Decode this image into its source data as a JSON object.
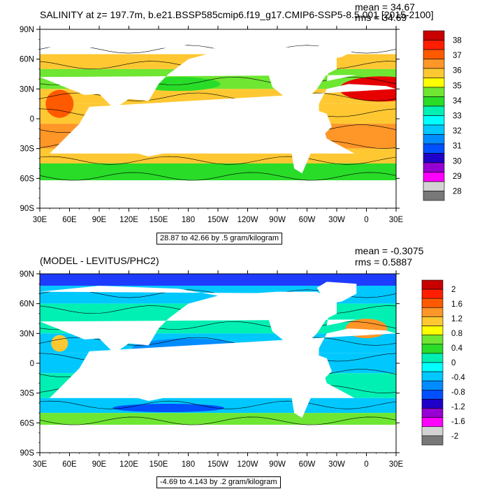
{
  "panels": [
    {
      "title": "SALINITY at z= 197.7m, b.e21.BSSP585cmip6.f19_g17.CMIP6-SSP5-8.5.001 [2015-2100]",
      "mean": "mean = 34.67",
      "rms": "rms = 34.69",
      "info": "28.87 to 42.66 by .5 gram/kilogram",
      "legend_labels": [
        "38",
        "37",
        "36",
        "35",
        "34",
        "33",
        "32",
        "31",
        "30",
        "29",
        "28"
      ],
      "legend_colors": [
        "#c80000",
        "#ff1e00",
        "#ff5a00",
        "#ff9628",
        "#ffc832",
        "#ffff00",
        "#6ee632",
        "#28dc28",
        "#00f0b4",
        "#00ffff",
        "#00c8ff",
        "#008cff",
        "#0050ff",
        "#1e00c8",
        "#9600d2",
        "#ff00ff",
        "#d2d2d2",
        "#787878"
      ]
    },
    {
      "title": "(MODEL - LEVITUS/PHC2)",
      "mean": "mean = -0.3075",
      "rms": "rms = 0.5887",
      "info": "-4.69 to 4.143 by .2 gram/kilogram",
      "legend_labels": [
        "2",
        "1.6",
        "1.2",
        "0.8",
        "0.4",
        "0",
        "-0.4",
        "-0.8",
        "-1.2",
        "-1.6",
        "-2"
      ],
      "legend_colors": [
        "#c80000",
        "#ff1e00",
        "#ff5a00",
        "#ff9628",
        "#ffc832",
        "#ffff00",
        "#6ee632",
        "#28dc28",
        "#00f0b4",
        "#00ffff",
        "#00c8ff",
        "#008cff",
        "#0050ff",
        "#1e00c8",
        "#9600d2",
        "#ff00ff",
        "#d2d2d2",
        "#787878"
      ]
    }
  ],
  "lat_labels": [
    "90N",
    "60N",
    "30N",
    "0",
    "30S",
    "60S",
    "90S"
  ],
  "lon_labels": [
    "30E",
    "60E",
    "90E",
    "120E",
    "150E",
    "180",
    "150W",
    "120W",
    "90W",
    "60W",
    "30W",
    "0",
    "30E"
  ]
}
